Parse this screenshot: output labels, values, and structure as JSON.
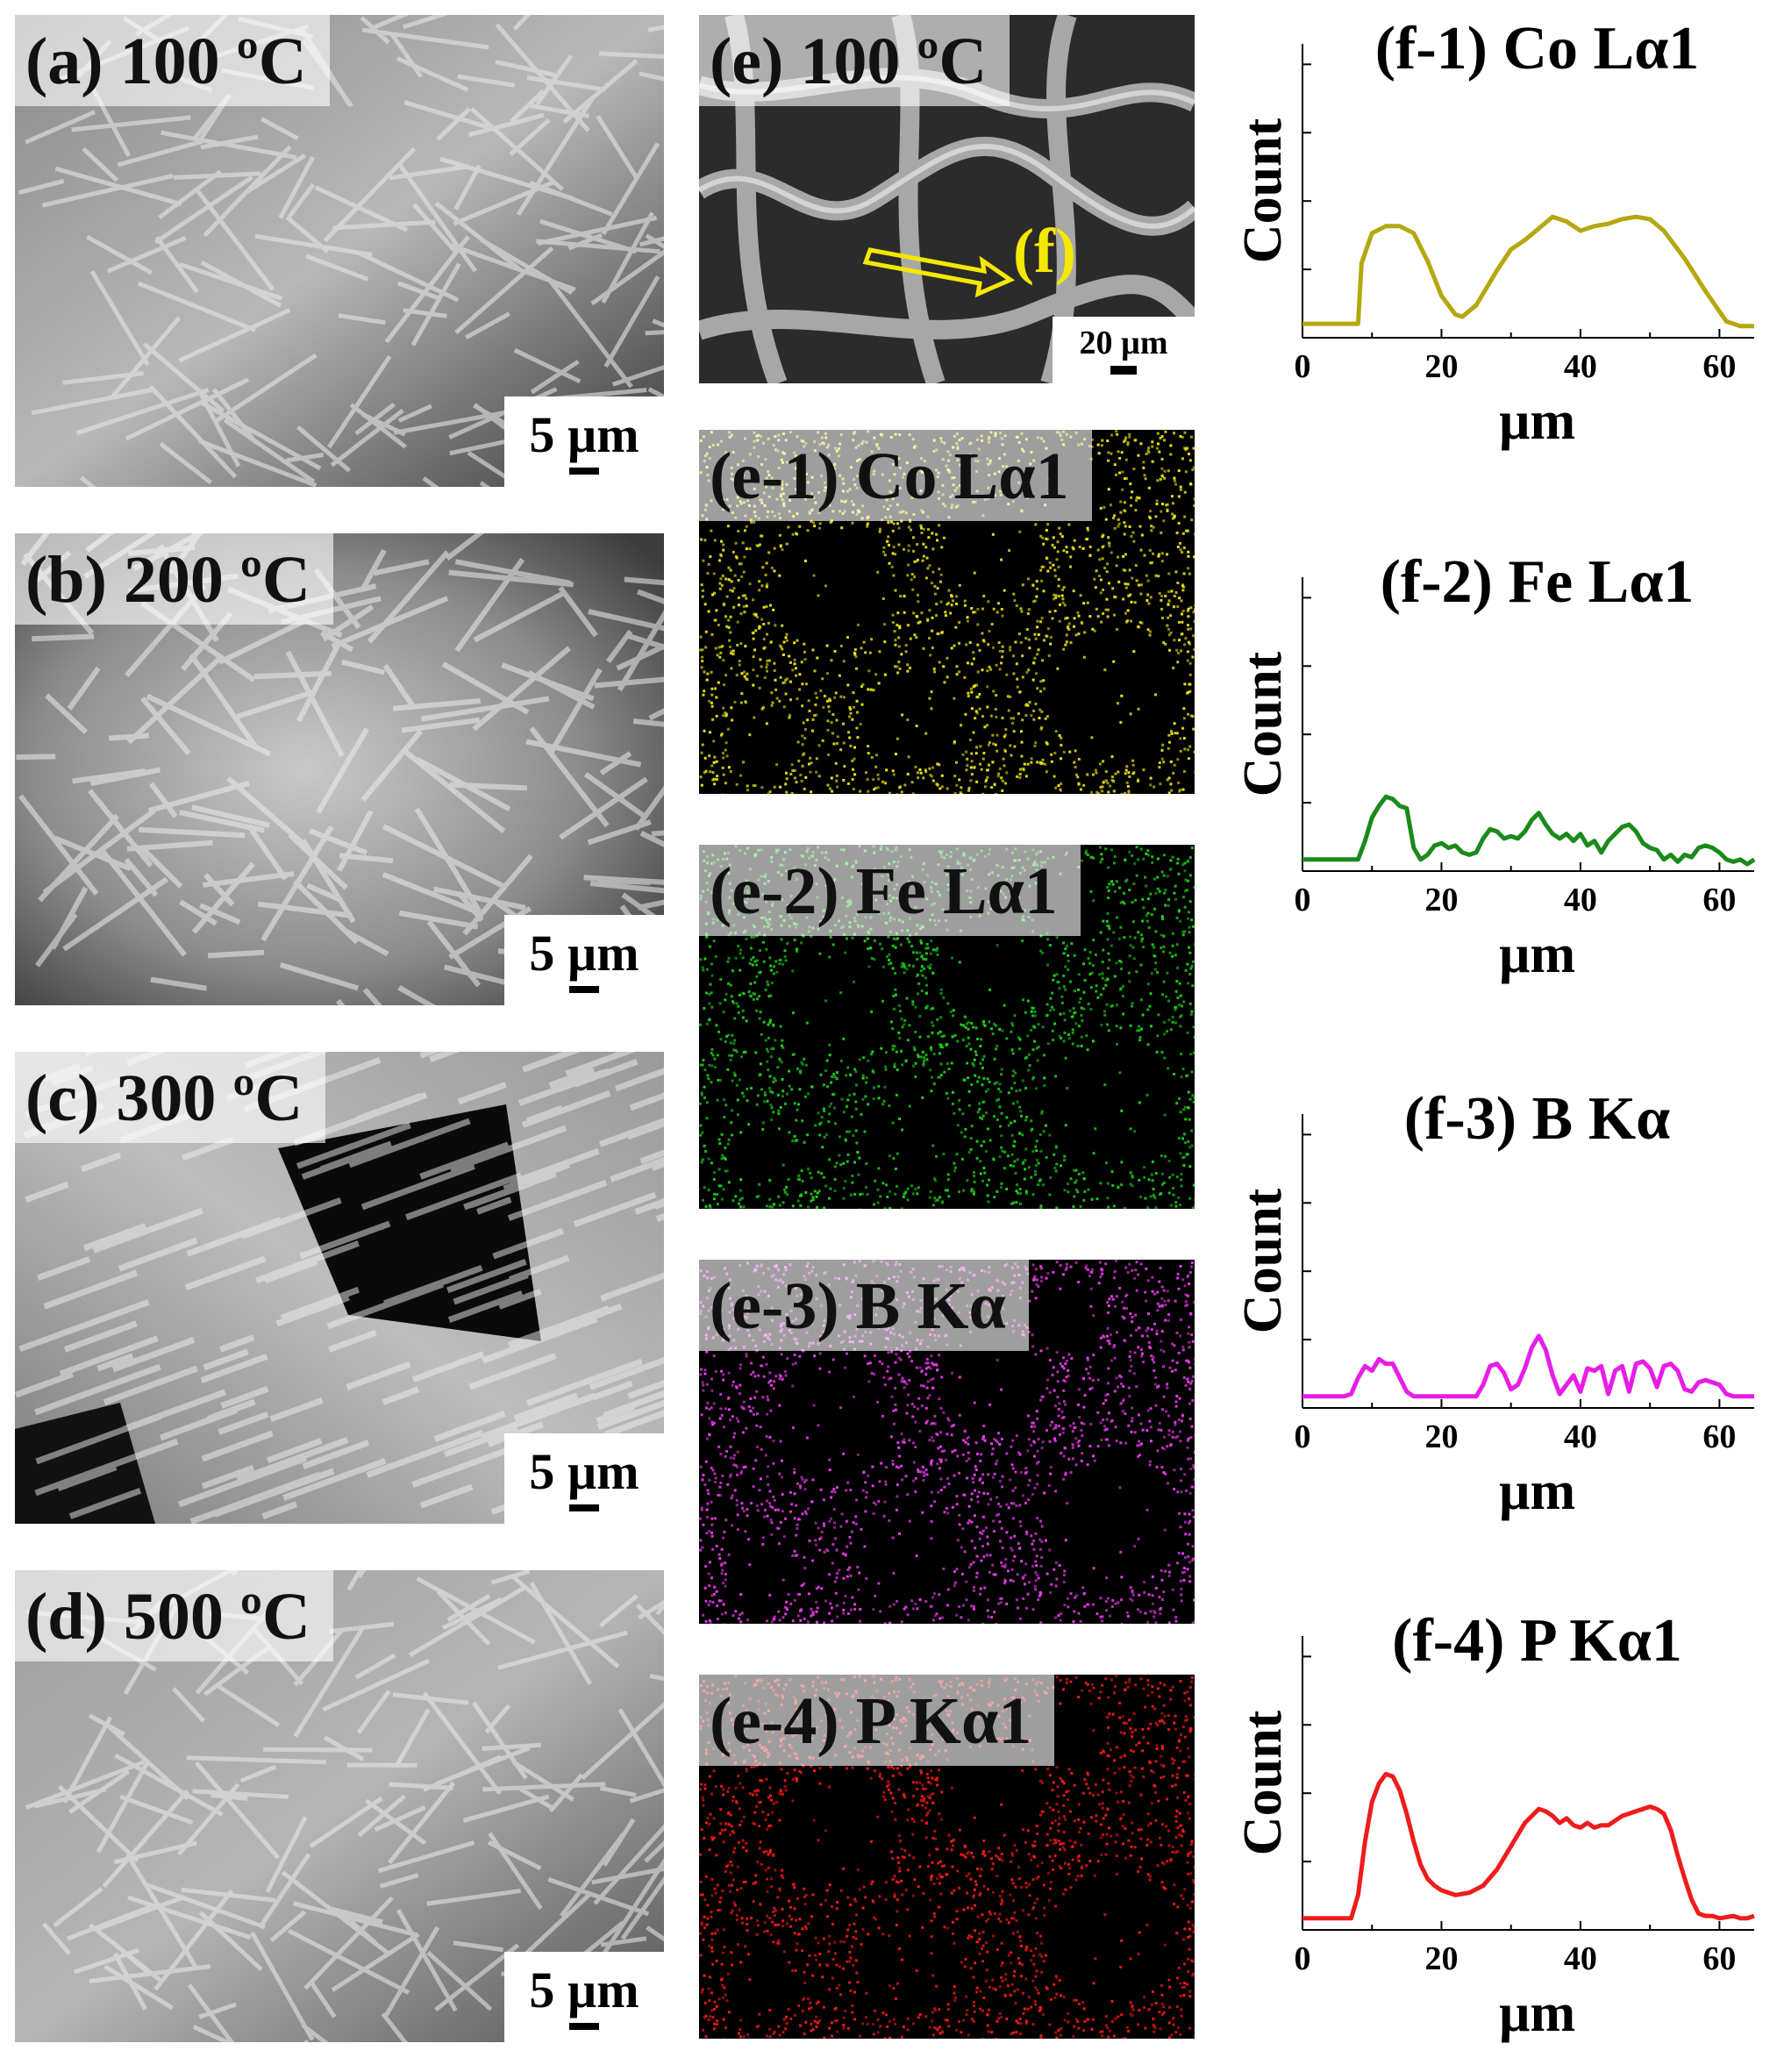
{
  "sem_panels": [
    {
      "label": "(a) 100 ºC",
      "scale": "5 µm"
    },
    {
      "label": "(b) 200 ºC",
      "scale": "5 µm"
    },
    {
      "label": "(c) 300 ºC",
      "scale": "5 µm"
    },
    {
      "label": "(d) 500 ºC",
      "scale": "5 µm"
    }
  ],
  "eds_overview": {
    "label": "(e) 100 ºC",
    "scale": "20 µm",
    "arrow_label": "(f)",
    "arrow_color": "#f4e800"
  },
  "eds_maps": [
    {
      "label": "(e-1) Co Lα1",
      "color": "#f2ea14"
    },
    {
      "label": "(e-2) Fe Lα1",
      "color": "#1fd41f"
    },
    {
      "label": "(e-3) B Kα",
      "color": "#f03cf0"
    },
    {
      "label": "(e-4) P Kα1",
      "color": "#ff1a1a"
    }
  ],
  "chart_data": [
    {
      "type": "line",
      "title": "(f-1) Co Lα1",
      "xlabel": "µm",
      "ylabel": "Count",
      "xlim": [
        0,
        65
      ],
      "ylim": [
        0,
        10
      ],
      "xticks": [
        0,
        20,
        40,
        60
      ],
      "color": "#b5a80e",
      "x": [
        0,
        8,
        8.5,
        10,
        12,
        14,
        16,
        18,
        20,
        22,
        23,
        25,
        28,
        30,
        32,
        34,
        36,
        38,
        40,
        42,
        44,
        46,
        48,
        50,
        52,
        55,
        58,
        61,
        63,
        65
      ],
      "y": [
        0.6,
        0.6,
        3.2,
        4.5,
        4.8,
        4.8,
        4.5,
        3.3,
        1.8,
        1.0,
        0.9,
        1.4,
        2.9,
        3.8,
        4.2,
        4.7,
        5.2,
        5.0,
        4.6,
        4.8,
        4.9,
        5.1,
        5.2,
        5.1,
        4.6,
        3.4,
        2.0,
        0.7,
        0.5,
        0.5
      ]
    },
    {
      "type": "line",
      "title": "(f-2) Fe Lα1",
      "xlabel": "µm",
      "ylabel": "Count",
      "xlim": [
        0,
        65
      ],
      "ylim": [
        0,
        10
      ],
      "xticks": [
        0,
        20,
        40,
        60
      ],
      "color": "#1a8a1a",
      "x": [
        0,
        8,
        9,
        10,
        11,
        12,
        13,
        14,
        15,
        16,
        17,
        18,
        19,
        20,
        21,
        22,
        23,
        24,
        25,
        26,
        27,
        28,
        29,
        30,
        31,
        32,
        33,
        34,
        35,
        36,
        37,
        38,
        39,
        40,
        41,
        42,
        43,
        44,
        45,
        46,
        47,
        48,
        49,
        50,
        51,
        52,
        53,
        54,
        55,
        56,
        57,
        58,
        59,
        60,
        61,
        62,
        63,
        64,
        65
      ],
      "y": [
        0.5,
        0.5,
        1.3,
        2.3,
        2.8,
        3.2,
        3.1,
        2.8,
        2.7,
        1.0,
        0.5,
        0.7,
        1.1,
        1.2,
        1.0,
        1.1,
        0.8,
        0.7,
        0.8,
        1.4,
        1.8,
        1.7,
        1.4,
        1.5,
        1.4,
        1.7,
        2.2,
        2.5,
        2.0,
        1.6,
        1.4,
        1.6,
        1.3,
        1.6,
        1.1,
        1.3,
        0.8,
        1.3,
        1.6,
        1.9,
        2.0,
        1.7,
        1.2,
        1.0,
        0.9,
        0.5,
        0.7,
        0.4,
        0.7,
        0.6,
        1.0,
        1.1,
        1.0,
        0.8,
        0.5,
        0.4,
        0.5,
        0.3,
        0.5
      ]
    },
    {
      "type": "line",
      "title": "(f-3) B Kα",
      "xlabel": "µm",
      "ylabel": "Count",
      "xlim": [
        0,
        65
      ],
      "ylim": [
        0,
        10
      ],
      "xticks": [
        0,
        20,
        40,
        60
      ],
      "color": "#e61ee6",
      "x": [
        0,
        6,
        7,
        8,
        9,
        10,
        11,
        12,
        13,
        14,
        15,
        16,
        17,
        18,
        25,
        26,
        27,
        28,
        29,
        30,
        31,
        32,
        33,
        34,
        35,
        36,
        37,
        38,
        39,
        40,
        41,
        42,
        43,
        44,
        45,
        46,
        47,
        48,
        49,
        50,
        51,
        52,
        53,
        54,
        55,
        56,
        57,
        58,
        59,
        60,
        61,
        62,
        65
      ],
      "y": [
        0.5,
        0.5,
        0.6,
        1.3,
        1.8,
        1.6,
        2.1,
        1.9,
        1.9,
        1.3,
        0.7,
        0.5,
        0.5,
        0.5,
        0.5,
        1.0,
        1.8,
        1.9,
        1.5,
        0.8,
        1.0,
        1.7,
        2.6,
        3.1,
        2.5,
        1.4,
        0.6,
        1.0,
        1.4,
        0.7,
        1.7,
        1.6,
        1.8,
        0.6,
        1.6,
        1.8,
        0.7,
        1.9,
        2.0,
        1.7,
        0.9,
        1.8,
        1.9,
        1.6,
        0.8,
        0.7,
        1.1,
        1.2,
        1.1,
        1.0,
        0.6,
        0.5,
        0.5
      ]
    },
    {
      "type": "line",
      "title": "(f-4) P Kα1",
      "xlabel": "µm",
      "ylabel": "Count",
      "xlim": [
        0,
        65
      ],
      "ylim": [
        0,
        10
      ],
      "xticks": [
        0,
        20,
        40,
        60
      ],
      "color": "#ee1c1c",
      "x": [
        0,
        7,
        8,
        9,
        10,
        11,
        12,
        13,
        14,
        15,
        16,
        17,
        18,
        19,
        20,
        22,
        24,
        26,
        28,
        30,
        32,
        34,
        35,
        36,
        37,
        38,
        39,
        40,
        41,
        42,
        43,
        44,
        46,
        48,
        50,
        51,
        52,
        53,
        54,
        55,
        56,
        57,
        58,
        59,
        60,
        62,
        63,
        64,
        65
      ],
      "y": [
        0.5,
        0.5,
        1.5,
        3.8,
        5.5,
        6.3,
        6.7,
        6.6,
        6.0,
        5.0,
        3.8,
        2.8,
        2.2,
        1.9,
        1.7,
        1.5,
        1.6,
        1.9,
        2.6,
        3.6,
        4.6,
        5.2,
        5.1,
        4.9,
        4.6,
        4.8,
        4.5,
        4.4,
        4.6,
        4.4,
        4.5,
        4.5,
        4.9,
        5.1,
        5.3,
        5.2,
        5.0,
        4.3,
        3.2,
        2.2,
        1.3,
        0.7,
        0.6,
        0.6,
        0.5,
        0.6,
        0.5,
        0.5,
        0.6
      ]
    }
  ]
}
